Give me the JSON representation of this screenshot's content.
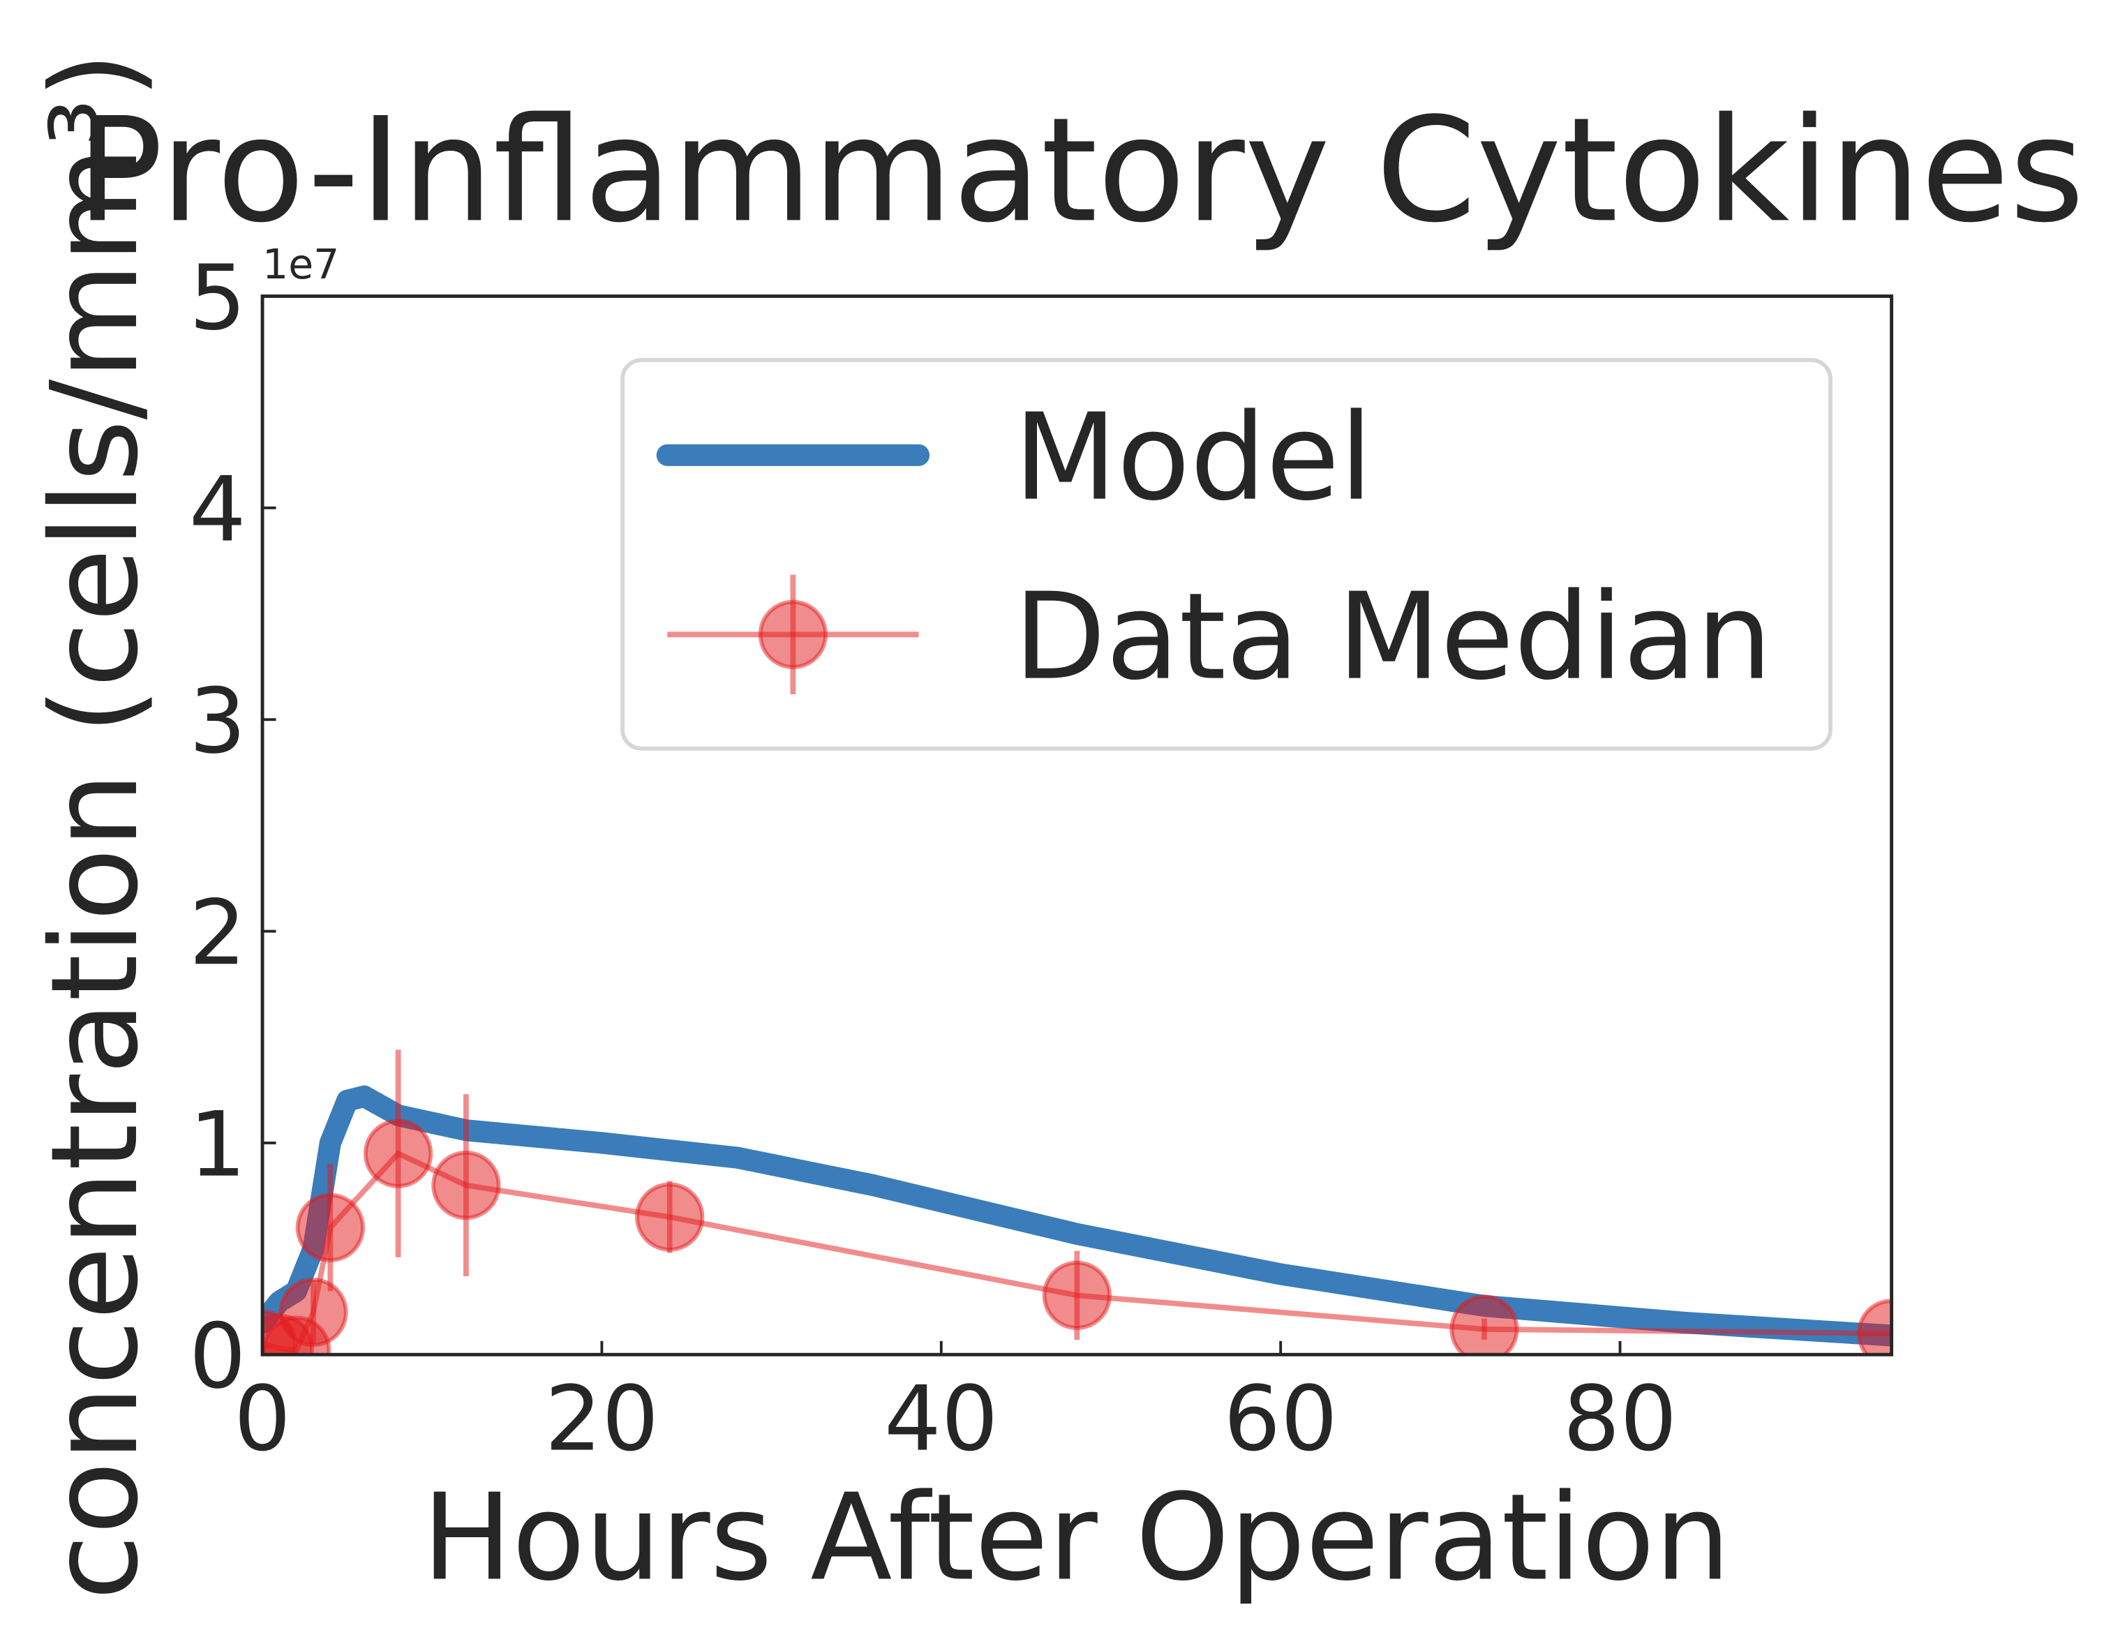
{
  "chart_data": {
    "type": "line",
    "title": "Pro-Inflammatory Cytokines",
    "x_label": "Hours After Operation",
    "y_label": "concentration (cells/mm³)",
    "y_offset_label": "1e7",
    "xlim": [
      0,
      96
    ],
    "xticks": [
      0,
      20,
      40,
      60,
      80
    ],
    "ylim": [
      0,
      50000000
    ],
    "yticks": [
      {
        "value": 0,
        "label": "0"
      },
      {
        "value": 10000000,
        "label": "1"
      },
      {
        "value": 20000000,
        "label": "2"
      },
      {
        "value": 30000000,
        "label": "3"
      },
      {
        "value": 40000000,
        "label": "4"
      },
      {
        "value": 50000000,
        "label": "5"
      }
    ],
    "legend_position": "upper right",
    "series": [
      {
        "name": "Model",
        "type": "line",
        "color": "#3a7dba",
        "x": [
          0,
          1,
          2,
          3,
          4,
          5,
          6,
          8,
          12,
          20,
          28,
          36,
          48,
          60,
          72,
          84,
          96
        ],
        "values": [
          1500000,
          2500000,
          3000000,
          5000000,
          10000000,
          12000000,
          12200000,
          11300000,
          10600000,
          10000000,
          9300000,
          8000000,
          5700000,
          3800000,
          2300000,
          1500000,
          900000
        ]
      },
      {
        "name": "Data Median",
        "type": "errorbar",
        "color": "#e41a1c",
        "x": [
          0,
          1,
          2,
          3,
          4,
          8,
          12,
          24,
          48,
          72,
          96
        ],
        "values": [
          500000,
          300000,
          200000,
          2000000,
          6000000,
          9500000,
          8000000,
          6500000,
          2800000,
          1200000,
          1000000
        ],
        "errors": [
          0,
          0,
          0,
          1500000,
          3000000,
          4900000,
          4300000,
          1700000,
          2100000,
          500000,
          0
        ]
      }
    ]
  }
}
